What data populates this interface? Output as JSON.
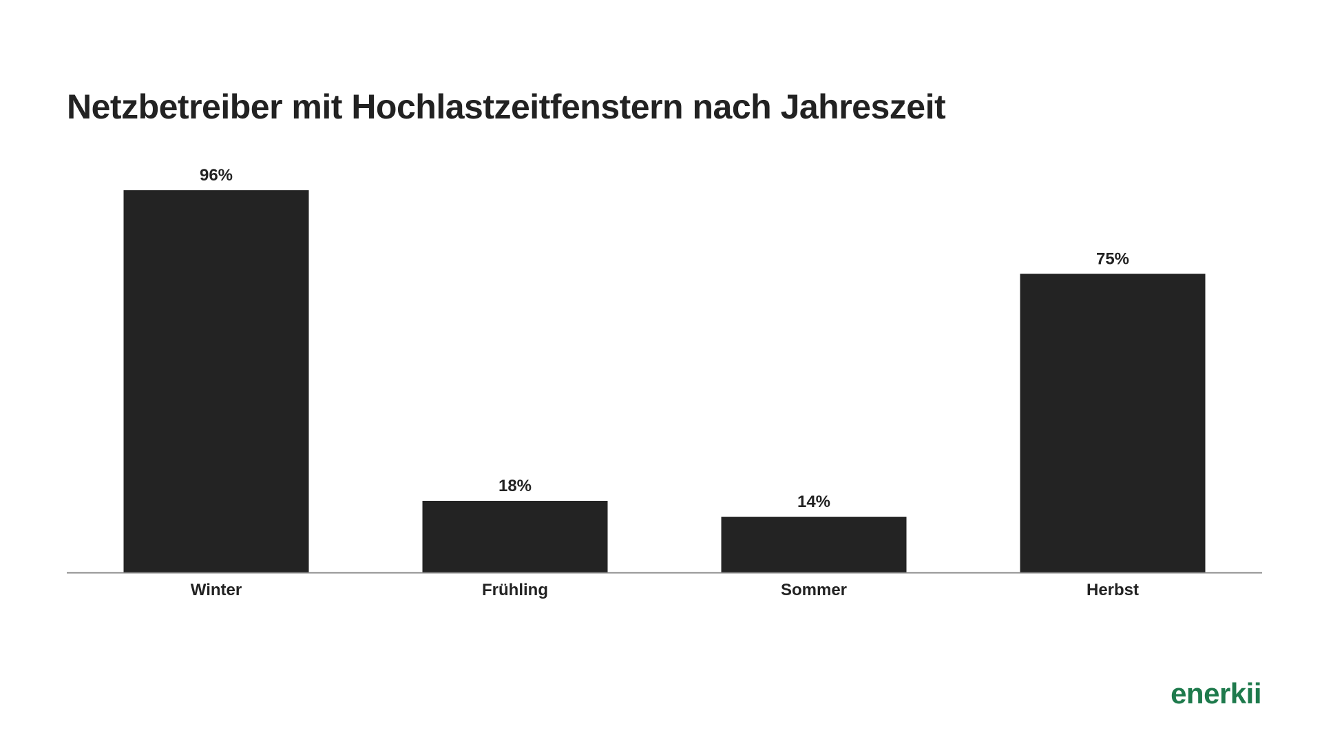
{
  "brand": {
    "name": "enerkii",
    "color": "#1e7a4c"
  },
  "colors": {
    "bar": "#232323",
    "text": "#222222",
    "axis": "#8a8a8a",
    "background": "#ffffff"
  },
  "chart_data": {
    "type": "bar",
    "title": "Netzbetreiber mit Hochlastzeitfenstern nach Jahreszeit",
    "categories": [
      "Winter",
      "Frühling",
      "Sommer",
      "Herbst"
    ],
    "values": [
      96,
      18,
      14,
      75
    ],
    "value_labels": [
      "96%",
      "18%",
      "14%",
      "75%"
    ],
    "unit": "%",
    "ylim": [
      0,
      100
    ],
    "grid": false,
    "legend": "none"
  }
}
